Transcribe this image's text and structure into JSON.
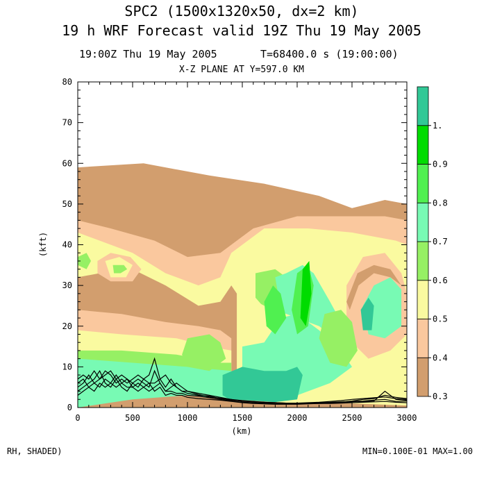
{
  "header": {
    "title_line1": "SPC2 (1500x1320x50, dx=2 km)",
    "title_line2": "19 h  WRF Forecast valid 19Z Thu 19 May 2005",
    "time_left": "19:00Z Thu 19 May 2005",
    "time_right": "T=68400.0 s (19:00:00)",
    "plane": "X-Z PLANE AT Y=597.0 KM"
  },
  "footer": {
    "field": "RH, SHADED)",
    "minmax": "MIN=0.100E-01 MAX=1.00"
  },
  "chart_data": {
    "type": "heatmap",
    "xlabel": "(km)",
    "ylabel": "(kft)",
    "xlim": [
      0,
      3000
    ],
    "ylim": [
      0,
      80
    ],
    "xticks": [
      0,
      500,
      1000,
      1500,
      2000,
      2500,
      3000
    ],
    "yticks": [
      0,
      10,
      20,
      30,
      40,
      50,
      60,
      70,
      80
    ],
    "colorbar": {
      "levels": [
        0.3,
        0.4,
        0.5,
        0.6,
        0.7,
        0.8,
        0.9,
        1.0
      ],
      "labels": [
        "0.3",
        "0.4",
        "0.5",
        "0.6",
        "0.7",
        "0.8",
        "0.9",
        "1."
      ],
      "colors": [
        "#d29e6e",
        "#fac89e",
        "#fafaa0",
        "#96f064",
        "#78fab4",
        "#50f050",
        "#00dc00",
        "#32c896"
      ]
    },
    "regions": [
      {
        "level": 0.3,
        "poly": [
          [
            0,
            59
          ],
          [
            600,
            60
          ],
          [
            1200,
            57
          ],
          [
            1700,
            55
          ],
          [
            2200,
            52
          ],
          [
            2500,
            49
          ],
          [
            2800,
            51
          ],
          [
            3000,
            50
          ],
          [
            3000,
            0
          ],
          [
            0,
            0
          ]
        ]
      },
      {
        "level": 0.4,
        "poly": [
          [
            0,
            46
          ],
          [
            300,
            44
          ],
          [
            700,
            41
          ],
          [
            1000,
            37
          ],
          [
            1300,
            38
          ],
          [
            1600,
            44
          ],
          [
            2000,
            47
          ],
          [
            2400,
            47
          ],
          [
            2800,
            47
          ],
          [
            3000,
            46
          ],
          [
            3000,
            0
          ],
          [
            0,
            0
          ]
        ]
      },
      {
        "level": 0.5,
        "poly": [
          [
            0,
            43
          ],
          [
            200,
            41
          ],
          [
            500,
            38
          ],
          [
            800,
            33
          ],
          [
            1100,
            30
          ],
          [
            1300,
            32
          ],
          [
            1400,
            38
          ],
          [
            1700,
            44
          ],
          [
            2100,
            44
          ],
          [
            2500,
            43
          ],
          [
            2900,
            41
          ],
          [
            3000,
            40
          ],
          [
            3000,
            0
          ],
          [
            0,
            0
          ]
        ]
      },
      {
        "level": 0.3,
        "poly": [
          [
            0,
            32
          ],
          [
            200,
            33
          ],
          [
            500,
            34
          ],
          [
            800,
            30
          ],
          [
            1100,
            25
          ],
          [
            1300,
            26
          ],
          [
            1400,
            30
          ],
          [
            1450,
            28
          ],
          [
            1450,
            0
          ],
          [
            0,
            0
          ]
        ]
      },
      {
        "level": 0.4,
        "poly": [
          [
            0,
            24
          ],
          [
            400,
            23
          ],
          [
            800,
            21
          ],
          [
            1100,
            20
          ],
          [
            1300,
            19
          ],
          [
            1400,
            17
          ],
          [
            1400,
            0
          ],
          [
            0,
            0
          ]
        ]
      },
      {
        "level": 0.5,
        "poly": [
          [
            0,
            19
          ],
          [
            400,
            18
          ],
          [
            900,
            17
          ],
          [
            1200,
            15
          ],
          [
            1400,
            14
          ],
          [
            1400,
            0
          ],
          [
            0,
            0
          ]
        ]
      },
      {
        "level": 0.6,
        "poly": [
          [
            0,
            14
          ],
          [
            400,
            14
          ],
          [
            900,
            13
          ],
          [
            1300,
            11
          ],
          [
            1400,
            11
          ],
          [
            1400,
            0
          ],
          [
            0,
            0
          ]
        ]
      },
      {
        "level": 0.7,
        "poly": [
          [
            0,
            12
          ],
          [
            500,
            11
          ],
          [
            1000,
            10
          ],
          [
            1400,
            9
          ],
          [
            1400,
            0
          ],
          [
            0,
            0
          ]
        ]
      },
      {
        "level": 0.4,
        "poly": [
          [
            180,
            36
          ],
          [
            300,
            38
          ],
          [
            480,
            37
          ],
          [
            580,
            34
          ],
          [
            500,
            31
          ],
          [
            300,
            31
          ],
          [
            180,
            33
          ]
        ]
      },
      {
        "level": 0.5,
        "poly": [
          [
            250,
            36
          ],
          [
            380,
            37
          ],
          [
            500,
            35
          ],
          [
            440,
            32
          ],
          [
            300,
            32
          ]
        ]
      },
      {
        "level": 0.6,
        "poly": [
          [
            320,
            35
          ],
          [
            420,
            35
          ],
          [
            450,
            34
          ],
          [
            390,
            33
          ],
          [
            330,
            33
          ]
        ]
      },
      {
        "level": 0.6,
        "poly": [
          [
            0,
            37
          ],
          [
            80,
            38
          ],
          [
            120,
            36
          ],
          [
            80,
            34
          ],
          [
            0,
            35
          ]
        ]
      },
      {
        "level": 0.5,
        "poly": [
          [
            1550,
            38
          ],
          [
            1750,
            40
          ],
          [
            1950,
            39
          ],
          [
            2050,
            35
          ],
          [
            2000,
            28
          ],
          [
            1900,
            23
          ],
          [
            1700,
            22
          ],
          [
            1550,
            26
          ],
          [
            1500,
            32
          ]
        ]
      },
      {
        "level": 0.6,
        "poly": [
          [
            1620,
            33
          ],
          [
            1800,
            34
          ],
          [
            1950,
            31
          ],
          [
            1950,
            25
          ],
          [
            1750,
            23
          ],
          [
            1620,
            27
          ]
        ]
      },
      {
        "level": 0.7,
        "poly": [
          [
            1800,
            32
          ],
          [
            1900,
            33
          ],
          [
            2050,
            35
          ],
          [
            2150,
            33
          ],
          [
            2300,
            26
          ],
          [
            2400,
            21
          ],
          [
            2200,
            18
          ],
          [
            2000,
            19
          ],
          [
            1850,
            24
          ]
        ]
      },
      {
        "level": 0.4,
        "poly": [
          [
            2450,
            30
          ],
          [
            2600,
            37
          ],
          [
            2800,
            38
          ],
          [
            2950,
            33
          ],
          [
            3000,
            28
          ],
          [
            3000,
            18
          ],
          [
            2850,
            14
          ],
          [
            2650,
            12
          ],
          [
            2500,
            16
          ],
          [
            2450,
            22
          ]
        ]
      },
      {
        "level": 0.7,
        "poly": [
          [
            2600,
            25
          ],
          [
            2700,
            30
          ],
          [
            2850,
            32
          ],
          [
            2950,
            29
          ],
          [
            2950,
            20
          ],
          [
            2800,
            17
          ],
          [
            2650,
            18
          ]
        ]
      },
      {
        "level": 0.5,
        "poly": [
          [
            1500,
            28
          ],
          [
            1700,
            25
          ],
          [
            2000,
            22
          ],
          [
            2200,
            20
          ],
          [
            2300,
            18
          ],
          [
            2500,
            14
          ],
          [
            2700,
            10
          ],
          [
            2900,
            9
          ],
          [
            3000,
            8
          ],
          [
            3000,
            0
          ],
          [
            1500,
            0
          ]
        ]
      },
      {
        "level": 0.7,
        "poly": [
          [
            1500,
            15
          ],
          [
            1700,
            16
          ],
          [
            1850,
            22
          ],
          [
            2000,
            23
          ],
          [
            2200,
            19
          ],
          [
            2400,
            14
          ],
          [
            2500,
            10
          ],
          [
            2300,
            6
          ],
          [
            2000,
            3
          ],
          [
            1700,
            3
          ],
          [
            1500,
            5
          ]
        ]
      },
      {
        "level": 0.6,
        "poly": [
          [
            1000,
            17
          ],
          [
            1200,
            18
          ],
          [
            1300,
            16
          ],
          [
            1350,
            12
          ],
          [
            1200,
            9
          ],
          [
            1000,
            10
          ],
          [
            950,
            13
          ]
        ]
      },
      {
        "level": 0.6,
        "poly": [
          [
            2250,
            23
          ],
          [
            2400,
            24
          ],
          [
            2500,
            21
          ],
          [
            2550,
            14
          ],
          [
            2450,
            10
          ],
          [
            2300,
            11
          ],
          [
            2200,
            17
          ]
        ]
      },
      {
        "level": 0.8,
        "poly": [
          [
            1700,
            26
          ],
          [
            1780,
            30
          ],
          [
            1850,
            28
          ],
          [
            1900,
            22
          ],
          [
            1800,
            18
          ],
          [
            1720,
            20
          ]
        ]
      },
      {
        "level": 0.8,
        "poly": [
          [
            2000,
            33
          ],
          [
            2100,
            35
          ],
          [
            2150,
            30
          ],
          [
            2100,
            20
          ],
          [
            2000,
            18
          ],
          [
            1950,
            24
          ]
        ]
      },
      {
        "level": 0.9,
        "poly": [
          [
            2050,
            34
          ],
          [
            2110,
            36
          ],
          [
            2130,
            28
          ],
          [
            2080,
            20
          ],
          [
            2030,
            22
          ]
        ]
      },
      {
        "level": 1.0,
        "poly": [
          [
            1320,
            8
          ],
          [
            1500,
            10
          ],
          [
            1700,
            9
          ],
          [
            1900,
            9
          ],
          [
            2000,
            10
          ],
          [
            2050,
            8
          ],
          [
            2000,
            2
          ],
          [
            1700,
            1
          ],
          [
            1450,
            1
          ],
          [
            1320,
            3
          ]
        ]
      },
      {
        "level": 1.0,
        "poly": [
          [
            2580,
            24
          ],
          [
            2650,
            27
          ],
          [
            2700,
            25
          ],
          [
            2680,
            19
          ],
          [
            2600,
            19
          ]
        ]
      },
      {
        "level": 0.3,
        "poly": [
          [
            2450,
            26
          ],
          [
            2550,
            33
          ],
          [
            2700,
            35
          ],
          [
            2850,
            34
          ],
          [
            2950,
            30
          ],
          [
            2850,
            32
          ],
          [
            2700,
            33
          ],
          [
            2560,
            30
          ],
          [
            2480,
            24
          ]
        ]
      },
      {
        "level": 0.3,
        "poly": [
          [
            0,
            0
          ],
          [
            500,
            2
          ],
          [
            1000,
            3
          ],
          [
            1400,
            2
          ],
          [
            2000,
            1
          ],
          [
            2500,
            1
          ],
          [
            3000,
            0.5
          ],
          [
            3000,
            0
          ],
          [
            0,
            0
          ]
        ]
      }
    ],
    "surface_lines": {
      "color": "#000000",
      "x": [
        0,
        50,
        100,
        150,
        200,
        250,
        300,
        350,
        400,
        450,
        500,
        550,
        600,
        650,
        700,
        750,
        800,
        850,
        900,
        950,
        1000,
        1100,
        1200,
        1300,
        1400,
        1500,
        1600,
        1700,
        1800,
        1900,
        2000,
        2100,
        2200,
        2300,
        2400,
        2500,
        2600,
        2700,
        2800,
        2900,
        3000
      ],
      "series": [
        [
          7,
          8,
          7,
          9,
          7,
          8,
          9,
          7,
          8,
          7,
          6,
          7,
          6,
          5,
          9,
          6,
          4,
          5,
          6,
          5,
          4,
          3.5,
          3,
          2.5,
          2,
          1.5,
          1.5,
          1.2,
          1.1,
          1,
          1,
          1.1,
          1.2,
          1.3,
          1.4,
          1.5,
          1.6,
          1.8,
          2,
          1.5,
          1.6
        ],
        [
          5,
          6,
          8,
          6,
          7,
          9,
          8,
          6,
          7,
          6,
          7,
          8,
          7,
          8,
          12,
          7,
          5,
          7,
          5,
          4,
          3.5,
          3,
          2.8,
          2.2,
          1.8,
          1.6,
          1.4,
          1.3,
          1.2,
          1.1,
          1,
          1,
          1.1,
          1.2,
          1.3,
          1.6,
          2,
          2.2,
          3,
          2.5,
          2.2
        ],
        [
          3,
          4,
          5,
          4,
          6,
          5,
          6,
          8,
          6,
          5,
          5,
          6,
          5,
          4,
          5,
          6,
          4,
          4,
          3.5,
          3.5,
          3,
          2.8,
          2.4,
          2,
          1.6,
          1.3,
          1.2,
          1.1,
          1,
          0.9,
          0.9,
          1,
          1,
          1.1,
          1.2,
          1.4,
          1.5,
          1.6,
          4,
          2,
          1.8
        ],
        [
          4,
          5,
          6,
          7,
          9,
          6,
          5,
          7,
          5,
          4,
          6,
          5,
          7,
          6,
          6,
          7,
          8,
          6,
          5,
          4,
          4,
          3.2,
          2.6,
          2.3,
          2,
          1.7,
          1.5,
          1.3,
          1.2,
          1.1,
          1.1,
          1.2,
          1.3,
          1.5,
          1.7,
          2,
          2.2,
          2.4,
          2.6,
          2.2,
          2
        ],
        [
          6,
          7,
          5,
          6,
          5,
          7,
          6,
          5,
          6,
          7,
          5,
          4,
          5,
          6,
          4,
          5,
          3,
          3.5,
          3,
          3,
          2.5,
          2.2,
          2,
          1.8,
          1.5,
          1.2,
          1,
          0.9,
          0.8,
          0.8,
          0.8,
          0.9,
          1,
          1,
          1.1,
          1.2,
          1.3,
          1.4,
          1.5,
          1.3,
          1.2
        ]
      ]
    }
  }
}
